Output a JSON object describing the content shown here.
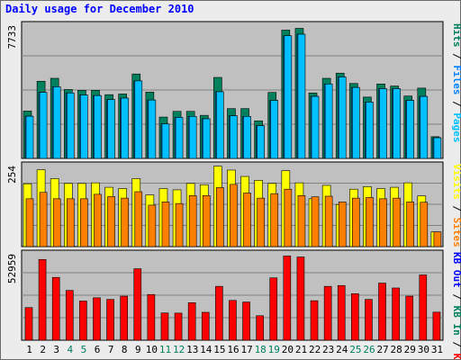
{
  "title": "Daily usage for December 2010",
  "colors": {
    "pages": "#00c0ff",
    "files": "#0080ff",
    "hits": "#00805c",
    "visits": "#ffff00",
    "sites": "#ff8000",
    "kb_in": "#00805c",
    "kb_out": "#0000ff",
    "kb_f": "#ff0000",
    "weekday_label": "#000000",
    "weekend_label": "#00805c",
    "panel_bg": "#c0c0c0",
    "frame_bg": "#ececec"
  },
  "chart_data": [
    {
      "type": "bar",
      "name": "hits-files-pages",
      "ymax_label": "7733",
      "ylim": [
        0,
        7733
      ],
      "grid": true,
      "legend": {
        "position": "right",
        "items": [
          {
            "label": "Pages",
            "color": "#00c0ff"
          },
          {
            "label": "Files",
            "color": "#0080ff"
          },
          {
            "label": "Hits",
            "color": "#00805c"
          }
        ],
        "separator": " / "
      },
      "categories": [
        "1",
        "2",
        "3",
        "4",
        "5",
        "6",
        "7",
        "8",
        "9",
        "10",
        "11",
        "12",
        "13",
        "14",
        "15",
        "16",
        "17",
        "18",
        "19",
        "20",
        "21",
        "22",
        "23",
        "24",
        "25",
        "26",
        "27",
        "28",
        "29",
        "30",
        "31"
      ],
      "series": [
        {
          "key": "hits",
          "values": [
            2750,
            4480,
            4650,
            4000,
            3950,
            3950,
            3700,
            3740,
            4900,
            3850,
            2400,
            2730,
            2730,
            2500,
            4700,
            2890,
            2890,
            2180,
            3830,
            7450,
            7550,
            3800,
            4650,
            4950,
            4350,
            3560,
            4320,
            4200,
            3620,
            4080,
            1260
          ]
        },
        {
          "key": "files",
          "values": [
            2450,
            3830,
            4160,
            3800,
            3680,
            3650,
            3420,
            3500,
            4500,
            3390,
            2000,
            2380,
            2440,
            2300,
            3870,
            2480,
            2440,
            1900,
            3370,
            7120,
            7210,
            3600,
            4320,
            4730,
            4120,
            3270,
            4050,
            4050,
            3370,
            3600,
            1200
          ]
        },
        {
          "key": "pages",
          "values": [
            2450,
            3830,
            4160,
            3800,
            3680,
            3650,
            3420,
            3500,
            4500,
            3390,
            2000,
            2380,
            2440,
            2300,
            3870,
            2480,
            2440,
            1900,
            3370,
            7120,
            7210,
            3600,
            4320,
            4730,
            4120,
            3270,
            4050,
            4050,
            3370,
            3600,
            1200
          ]
        }
      ],
      "highlight_weekends": [
        "4",
        "5",
        "11",
        "12",
        "18",
        "19",
        "25",
        "26"
      ]
    },
    {
      "type": "bar",
      "name": "visits-sites",
      "ymax_label": "254",
      "ylim": [
        0,
        254
      ],
      "grid": true,
      "legend": {
        "position": "right",
        "items": [
          {
            "label": "Sites",
            "color": "#ff8000"
          },
          {
            "label": "Visits",
            "color": "#ffff00"
          }
        ],
        "separator": " / "
      },
      "categories": [
        "1",
        "2",
        "3",
        "4",
        "5",
        "6",
        "7",
        "8",
        "9",
        "10",
        "11",
        "12",
        "13",
        "14",
        "15",
        "16",
        "17",
        "18",
        "19",
        "20",
        "21",
        "22",
        "23",
        "24",
        "25",
        "26",
        "27",
        "28",
        "29",
        "30",
        "31"
      ],
      "series": [
        {
          "key": "visits",
          "values": [
            197,
            241,
            213,
            198,
            198,
            200,
            186,
            182,
            213,
            162,
            182,
            178,
            198,
            194,
            252,
            240,
            220,
            208,
            198,
            238,
            200,
            150,
            192,
            132,
            180,
            188,
            182,
            186,
            200,
            159,
            46
          ]
        },
        {
          "key": "sites",
          "values": [
            150,
            170,
            150,
            150,
            150,
            164,
            157,
            152,
            172,
            130,
            140,
            135,
            160,
            160,
            185,
            195,
            168,
            152,
            166,
            180,
            160,
            156,
            158,
            140,
            152,
            154,
            150,
            152,
            140,
            139,
            46
          ]
        }
      ]
    },
    {
      "type": "bar",
      "name": "kbytes",
      "ymax_label": "52959",
      "ylim": [
        0,
        52959
      ],
      "grid": true,
      "legend": {
        "position": "right",
        "items": [
          {
            "label": "KB F",
            "color": "#ff0000"
          },
          {
            "label": "KB In",
            "color": "#00805c"
          },
          {
            "label": "KB Out",
            "color": "#0000ff"
          }
        ],
        "separator": " / "
      },
      "categories": [
        "1",
        "2",
        "3",
        "4",
        "5",
        "6",
        "7",
        "8",
        "9",
        "10",
        "11",
        "12",
        "13",
        "14",
        "15",
        "16",
        "17",
        "18",
        "19",
        "20",
        "21",
        "22",
        "23",
        "24",
        "25",
        "26",
        "27",
        "28",
        "29",
        "30",
        "31"
      ],
      "series": [
        {
          "key": "kb_f",
          "values": [
            20000,
            49500,
            38500,
            30500,
            24000,
            26000,
            25000,
            27000,
            43800,
            28000,
            16700,
            16600,
            23000,
            17100,
            33000,
            24400,
            23400,
            15000,
            38200,
            51600,
            51000,
            24200,
            33000,
            33500,
            28500,
            25000,
            35000,
            32000,
            27000,
            40000,
            17200
          ]
        }
      ]
    }
  ],
  "x_labels": [
    "1",
    "2",
    "3",
    "4",
    "5",
    "6",
    "7",
    "8",
    "9",
    "10",
    "11",
    "12",
    "13",
    "14",
    "15",
    "16",
    "17",
    "18",
    "19",
    "20",
    "21",
    "22",
    "23",
    "24",
    "25",
    "26",
    "27",
    "28",
    "29",
    "30",
    "31"
  ]
}
